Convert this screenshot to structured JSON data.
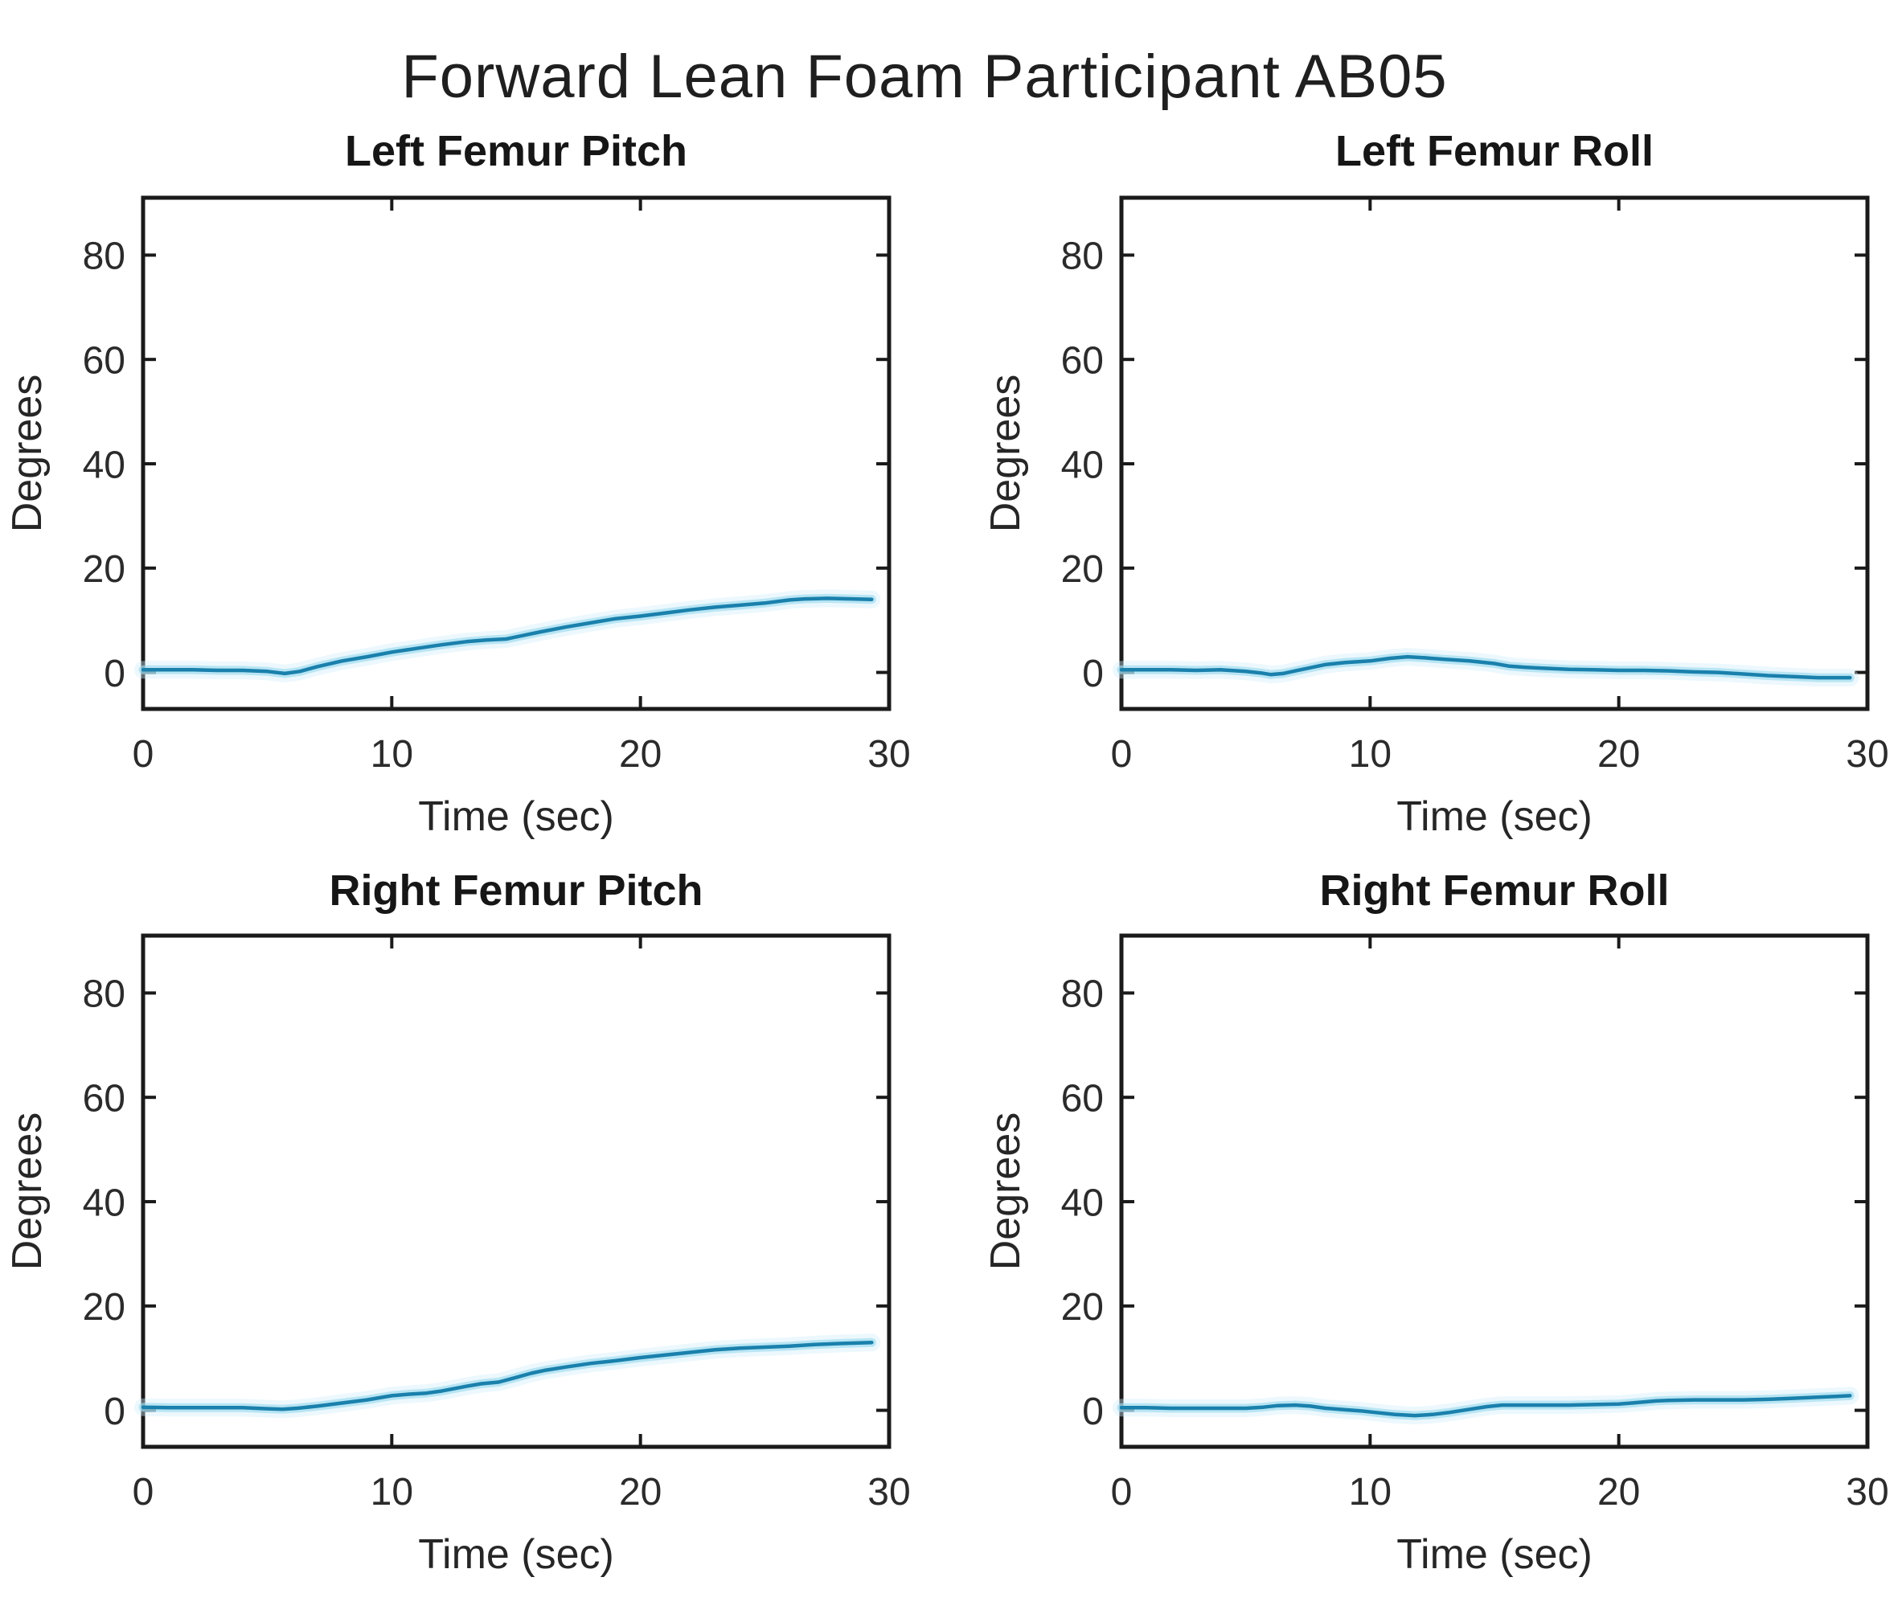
{
  "figure": {
    "title": "Forward Lean Foam Participant AB05"
  },
  "chart_data": {
    "type": "line",
    "layout": "2x2-subplots",
    "xlabel": "Time (sec)",
    "ylabel": "Degrees",
    "xlim": [
      0,
      30
    ],
    "ylim": [
      -7,
      91
    ],
    "x_ticks": [
      0,
      10,
      20,
      30
    ],
    "y_ticks": [
      0,
      20,
      40,
      60,
      80
    ],
    "grid": false,
    "legend": null,
    "line_color": "#1a80ac",
    "line_glow_color": "#9ddaf0",
    "line_outer_glow_color": "#cfeef9",
    "axis_color": "#1a1a1a",
    "tick_label_color": "#2b2b2b",
    "subplots": [
      {
        "title": "Left Femur Pitch",
        "series_points": [
          [
            0,
            0.5
          ],
          [
            1,
            0.5
          ],
          [
            2,
            0.5
          ],
          [
            3,
            0.4
          ],
          [
            4,
            0.4
          ],
          [
            5,
            0.2
          ],
          [
            5.7,
            -0.2
          ],
          [
            6.3,
            0.2
          ],
          [
            7,
            1.1
          ],
          [
            8,
            2.2
          ],
          [
            9,
            3.0
          ],
          [
            10,
            3.9
          ],
          [
            11,
            4.6
          ],
          [
            12,
            5.3
          ],
          [
            13,
            5.9
          ],
          [
            13.8,
            6.2
          ],
          [
            14.6,
            6.4
          ],
          [
            15.4,
            7.2
          ],
          [
            16,
            7.8
          ],
          [
            17,
            8.7
          ],
          [
            18,
            9.5
          ],
          [
            19,
            10.3
          ],
          [
            20,
            10.8
          ],
          [
            21,
            11.4
          ],
          [
            22,
            12.0
          ],
          [
            23,
            12.5
          ],
          [
            24,
            12.9
          ],
          [
            25,
            13.3
          ],
          [
            26,
            13.9
          ],
          [
            26.6,
            14.1
          ],
          [
            27.5,
            14.2
          ],
          [
            28.5,
            14.1
          ],
          [
            29.3,
            14.0
          ]
        ]
      },
      {
        "title": "Left Femur Roll",
        "series_points": [
          [
            0,
            0.5
          ],
          [
            1,
            0.5
          ],
          [
            2,
            0.5
          ],
          [
            3,
            0.4
          ],
          [
            4,
            0.5
          ],
          [
            5,
            0.2
          ],
          [
            5.6,
            -0.1
          ],
          [
            6,
            -0.4
          ],
          [
            6.5,
            -0.2
          ],
          [
            7,
            0.3
          ],
          [
            7.6,
            0.9
          ],
          [
            8.2,
            1.5
          ],
          [
            9,
            1.9
          ],
          [
            10,
            2.2
          ],
          [
            10.8,
            2.7
          ],
          [
            11.5,
            3.0
          ],
          [
            12.2,
            2.8
          ],
          [
            13,
            2.5
          ],
          [
            14,
            2.2
          ],
          [
            15,
            1.7
          ],
          [
            15.6,
            1.2
          ],
          [
            16.2,
            1.0
          ],
          [
            17,
            0.8
          ],
          [
            18,
            0.6
          ],
          [
            19,
            0.5
          ],
          [
            20,
            0.4
          ],
          [
            21,
            0.4
          ],
          [
            22,
            0.3
          ],
          [
            23,
            0.1
          ],
          [
            24,
            0.0
          ],
          [
            25,
            -0.3
          ],
          [
            26,
            -0.6
          ],
          [
            27,
            -0.8
          ],
          [
            28,
            -1.0
          ],
          [
            29.3,
            -1.0
          ]
        ]
      },
      {
        "title": "Right Femur Pitch",
        "series_points": [
          [
            0,
            0.6
          ],
          [
            1,
            0.5
          ],
          [
            2,
            0.5
          ],
          [
            3,
            0.5
          ],
          [
            4,
            0.5
          ],
          [
            5,
            0.3
          ],
          [
            5.6,
            0.2
          ],
          [
            6.2,
            0.4
          ],
          [
            7,
            0.8
          ],
          [
            8,
            1.4
          ],
          [
            9,
            2.0
          ],
          [
            10,
            2.8
          ],
          [
            10.7,
            3.1
          ],
          [
            11.4,
            3.3
          ],
          [
            12,
            3.7
          ],
          [
            13,
            4.6
          ],
          [
            13.6,
            5.1
          ],
          [
            14.3,
            5.4
          ],
          [
            15,
            6.3
          ],
          [
            15.6,
            7.1
          ],
          [
            16.2,
            7.7
          ],
          [
            17,
            8.3
          ],
          [
            18,
            9.0
          ],
          [
            19,
            9.5
          ],
          [
            20,
            10.1
          ],
          [
            21,
            10.6
          ],
          [
            22,
            11.1
          ],
          [
            23,
            11.6
          ],
          [
            24,
            11.9
          ],
          [
            25,
            12.1
          ],
          [
            26,
            12.3
          ],
          [
            27,
            12.6
          ],
          [
            28,
            12.8
          ],
          [
            29.3,
            13.0
          ]
        ]
      },
      {
        "title": "Right Femur Roll",
        "series_points": [
          [
            0,
            0.5
          ],
          [
            1,
            0.5
          ],
          [
            2,
            0.4
          ],
          [
            3,
            0.4
          ],
          [
            4,
            0.4
          ],
          [
            5,
            0.4
          ],
          [
            5.7,
            0.6
          ],
          [
            6.3,
            0.9
          ],
          [
            7,
            1.0
          ],
          [
            7.6,
            0.8
          ],
          [
            8.2,
            0.4
          ],
          [
            9,
            0.1
          ],
          [
            9.6,
            -0.1
          ],
          [
            10.2,
            -0.4
          ],
          [
            11,
            -0.8
          ],
          [
            11.8,
            -1.0
          ],
          [
            12.5,
            -0.8
          ],
          [
            13.2,
            -0.4
          ],
          [
            14,
            0.2
          ],
          [
            14.7,
            0.7
          ],
          [
            15.3,
            1.0
          ],
          [
            16,
            1.0
          ],
          [
            17,
            1.0
          ],
          [
            18,
            1.0
          ],
          [
            19,
            1.1
          ],
          [
            20,
            1.2
          ],
          [
            20.8,
            1.5
          ],
          [
            21.5,
            1.8
          ],
          [
            22,
            1.9
          ],
          [
            23,
            2.0
          ],
          [
            24,
            2.0
          ],
          [
            25,
            2.0
          ],
          [
            26,
            2.1
          ],
          [
            27,
            2.3
          ],
          [
            28,
            2.5
          ],
          [
            29.3,
            2.8
          ]
        ]
      }
    ]
  }
}
